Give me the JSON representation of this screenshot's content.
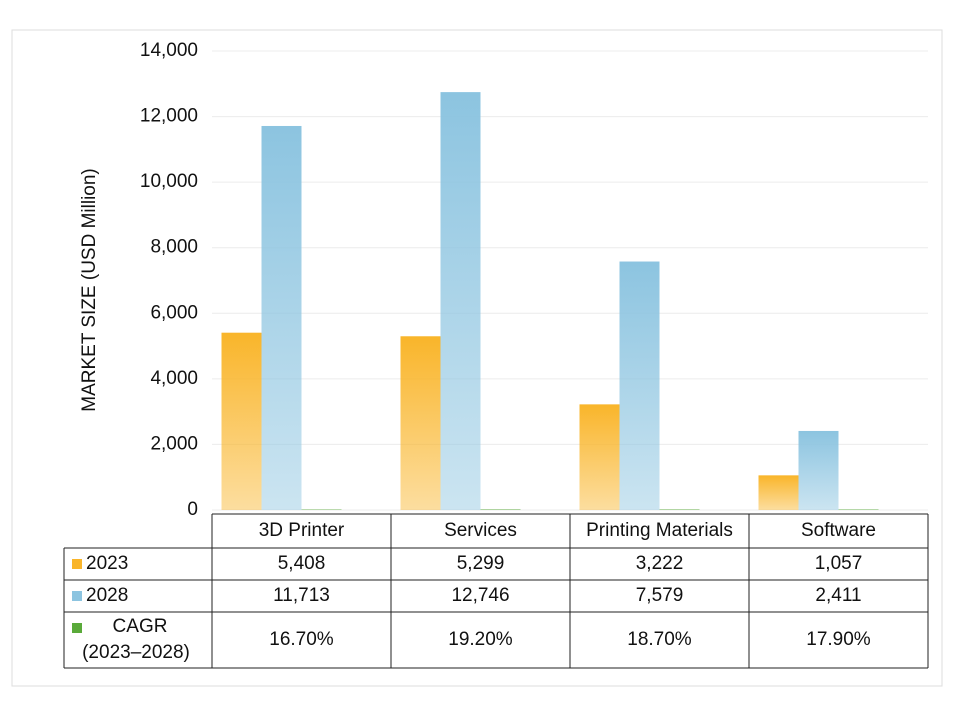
{
  "chart_data": {
    "type": "bar",
    "y_label": "MARKET SIZE (USD Million)",
    "categories": [
      "3D Printer",
      "Services",
      "Printing Materials",
      "Software"
    ],
    "series": [
      {
        "name": "2023",
        "color": "#f9b52a",
        "values": [
          5408,
          5299,
          3222,
          1057
        ],
        "value_labels": [
          "5,408",
          "5,299",
          "3,222",
          "1,057"
        ]
      },
      {
        "name": "2028",
        "color": "#8cc4e0",
        "values": [
          11713,
          12746,
          7579,
          2411
        ],
        "value_labels": [
          "11,713",
          "12,746",
          "7,579",
          "2,411"
        ]
      },
      {
        "name": "CAGR (2023–2028)",
        "color": "#5aaa3a",
        "values": [
          16.7,
          19.2,
          18.7,
          17.9
        ],
        "value_labels": [
          "16.70%",
          "19.20%",
          "18.70%",
          "17.90%"
        ]
      }
    ],
    "ylim": [
      0,
      14000
    ],
    "yticks": [
      0,
      {
        "value": 2000,
        "label": "2,000"
      },
      {
        "value": 4000,
        "label": "4,000"
      },
      {
        "value": 6000,
        "label": "6,000"
      },
      {
        "value": 8000,
        "label": "8,000"
      },
      {
        "value": 10000,
        "label": "10,000"
      },
      {
        "value": 12000,
        "label": "12,000"
      },
      {
        "value": 14000,
        "label": "14,000"
      }
    ],
    "grid": true
  }
}
